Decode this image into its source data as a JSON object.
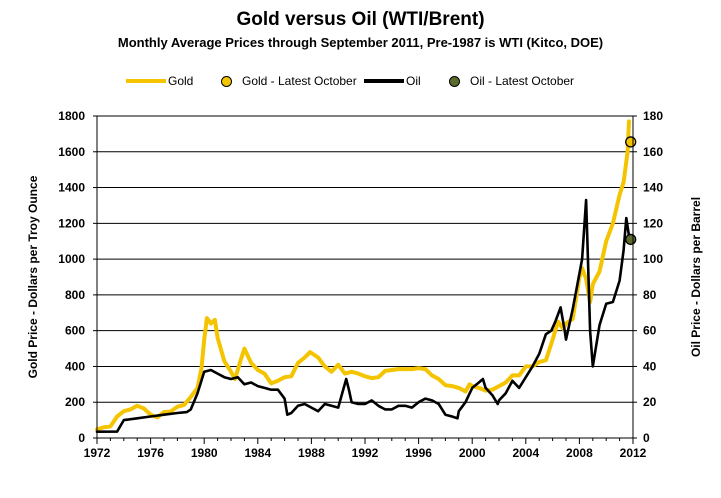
{
  "chart_data": {
    "type": "line",
    "title": "Gold versus Oil (WTI/Brent)",
    "subtitle": "Monthly Average Prices through September 2011, Pre-1987 is WTI (Kitco, DOE)",
    "ylabel_left": "Gold Price - Dollars per Troy Ounce",
    "ylabel_right": "Oil Price - Dollars per Barrel",
    "xlim": [
      1972,
      2012
    ],
    "ylim_left": [
      0,
      1800
    ],
    "ylim_right": [
      0,
      180
    ],
    "x_ticks": [
      "1972",
      "1976",
      "1980",
      "1984",
      "1988",
      "1992",
      "1996",
      "2000",
      "2004",
      "2008",
      "2012"
    ],
    "y_ticks_left": [
      "0",
      "200",
      "400",
      "600",
      "800",
      "1000",
      "1200",
      "1400",
      "1600",
      "1800"
    ],
    "y_ticks_right": [
      "0",
      "20",
      "40",
      "60",
      "80",
      "100",
      "120",
      "140",
      "160",
      "180"
    ],
    "grid": true,
    "legend_position": "top",
    "colors": {
      "gold": "#f5c400",
      "oil": "#000000",
      "gold_latest": "#f5c400",
      "oil_latest": "#5b6b2e"
    },
    "legend": [
      "Gold",
      "Gold - Latest October",
      "Oil",
      "Oil - Latest October"
    ],
    "series": [
      {
        "name": "Gold",
        "axis": "left",
        "x": [
          1972.0,
          1972.5,
          1973.0,
          1973.5,
          1974.0,
          1974.5,
          1975.0,
          1975.5,
          1976.0,
          1976.5,
          1977.0,
          1977.5,
          1978.0,
          1978.5,
          1979.0,
          1979.5,
          1979.8,
          1980.0,
          1980.2,
          1980.5,
          1980.8,
          1981.0,
          1981.5,
          1982.0,
          1982.3,
          1982.7,
          1983.0,
          1983.5,
          1984.0,
          1984.5,
          1985.0,
          1985.5,
          1986.0,
          1986.5,
          1987.0,
          1987.5,
          1987.9,
          1988.5,
          1989.0,
          1989.5,
          1990.0,
          1990.5,
          1991.0,
          1991.5,
          1992.0,
          1992.5,
          1993.0,
          1993.5,
          1994.0,
          1994.5,
          1995.0,
          1995.5,
          1996.0,
          1996.5,
          1997.0,
          1997.5,
          1998.0,
          1998.5,
          1999.0,
          1999.5,
          1999.8,
          2000.0,
          2000.5,
          2001.0,
          2001.5,
          2002.0,
          2002.5,
          2003.0,
          2003.5,
          2004.0,
          2004.5,
          2005.0,
          2005.5,
          2006.0,
          2006.4,
          2006.8,
          2007.0,
          2007.5,
          2008.0,
          2008.2,
          2008.5,
          2008.8,
          2009.0,
          2009.5,
          2010.0,
          2010.5,
          2011.0,
          2011.3,
          2011.6,
          2011.7
        ],
        "values": [
          48,
          60,
          65,
          120,
          150,
          160,
          180,
          165,
          130,
          115,
          145,
          148,
          175,
          185,
          230,
          280,
          390,
          550,
          670,
          640,
          660,
          560,
          430,
          370,
          330,
          430,
          500,
          420,
          380,
          360,
          305,
          320,
          340,
          345,
          420,
          450,
          480,
          450,
          400,
          370,
          410,
          360,
          370,
          360,
          345,
          335,
          340,
          375,
          380,
          385,
          385,
          385,
          390,
          385,
          350,
          330,
          295,
          290,
          280,
          260,
          300,
          290,
          280,
          265,
          270,
          290,
          310,
          350,
          350,
          400,
          400,
          425,
          435,
          550,
          650,
          610,
          640,
          665,
          900,
          950,
          890,
          760,
          860,
          930,
          1100,
          1200,
          1360,
          1430,
          1600,
          1770
        ]
      },
      {
        "name": "Oil",
        "axis": "right",
        "x": [
          1972.0,
          1973.5,
          1974.0,
          1975.0,
          1976.0,
          1977.0,
          1978.0,
          1978.7,
          1979.0,
          1979.5,
          1980.0,
          1980.5,
          1981.0,
          1981.5,
          1982.0,
          1982.5,
          1983.0,
          1983.5,
          1984.0,
          1984.5,
          1985.0,
          1985.5,
          1986.0,
          1986.2,
          1986.5,
          1987.0,
          1987.5,
          1988.0,
          1988.5,
          1989.0,
          1989.5,
          1990.0,
          1990.6,
          1990.8,
          1991.0,
          1991.5,
          1992.0,
          1992.5,
          1993.0,
          1993.5,
          1994.0,
          1994.5,
          1995.0,
          1995.5,
          1996.0,
          1996.5,
          1997.0,
          1997.5,
          1998.0,
          1998.5,
          1998.9,
          1999.0,
          1999.5,
          2000.0,
          2000.5,
          2000.8,
          2001.0,
          2001.5,
          2001.9,
          2002.0,
          2002.5,
          2003.0,
          2003.5,
          2004.0,
          2004.5,
          2005.0,
          2005.5,
          2005.9,
          2006.2,
          2006.6,
          2006.9,
          2007.0,
          2007.5,
          2007.9,
          2008.2,
          2008.5,
          2008.6,
          2008.8,
          2009.0,
          2009.5,
          2010.0,
          2010.5,
          2011.0,
          2011.3,
          2011.5,
          2011.7
        ],
        "values": [
          3.5,
          3.6,
          10,
          11,
          12,
          13,
          14,
          14.5,
          16,
          25,
          37,
          38,
          36,
          34,
          33,
          34,
          30,
          31,
          29,
          28,
          27,
          27,
          22,
          13,
          14,
          18,
          19,
          17,
          15,
          19,
          18,
          17,
          33,
          27,
          20,
          19,
          19,
          21,
          18,
          16,
          16,
          18,
          18,
          17,
          20,
          22,
          21,
          19,
          13,
          12,
          11,
          15,
          20,
          28,
          31,
          33,
          28,
          24,
          19,
          21,
          25,
          32,
          28,
          34,
          40,
          47,
          58,
          60,
          65,
          73,
          60,
          55,
          72,
          88,
          100,
          133,
          110,
          60,
          40,
          63,
          75,
          76,
          88,
          105,
          123,
          113
        ]
      }
    ],
    "latest_points": [
      {
        "name": "Gold - Latest October",
        "axis": "left",
        "x": 2011.83,
        "value": 1655
      },
      {
        "name": "Oil - Latest October",
        "axis": "right",
        "x": 2011.83,
        "value": 111
      }
    ]
  }
}
